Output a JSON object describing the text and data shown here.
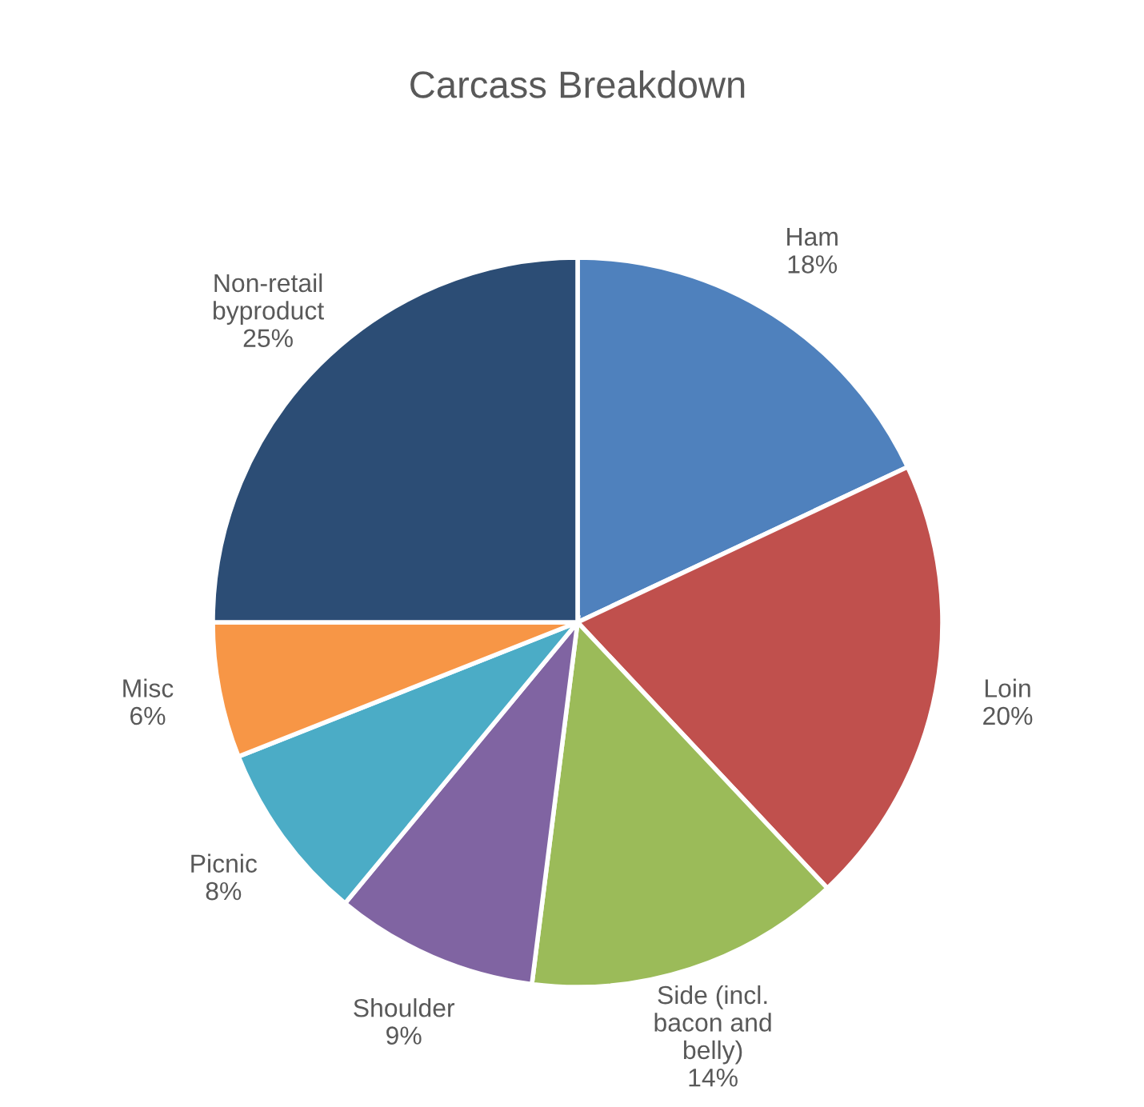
{
  "chart_data": {
    "type": "pie",
    "title": "Carcass Breakdown",
    "categories": [
      "Ham",
      "Loin",
      "Side (incl.\nbacon and\nbelly)",
      "Shoulder",
      "Picnic",
      "Misc",
      "Non-retail\nbyproduct"
    ],
    "values": [
      18,
      20,
      14,
      9,
      8,
      6,
      25
    ],
    "colors": [
      "#4f81bd",
      "#c0504d",
      "#9bbb59",
      "#8064a2",
      "#4bacc6",
      "#f79646",
      "#2c4d75"
    ],
    "value_labels": [
      "18%",
      "20%",
      "14%",
      "9%",
      "8%",
      "6%",
      "25%"
    ],
    "legend": false
  }
}
